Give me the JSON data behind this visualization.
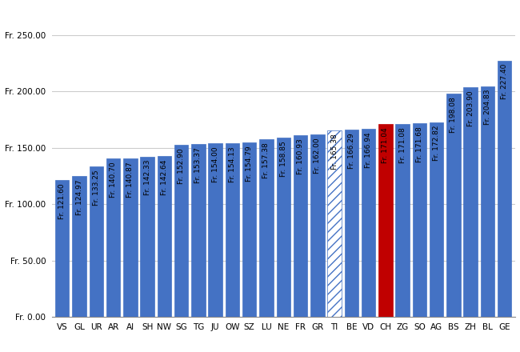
{
  "categories": [
    "VS",
    "GL",
    "UR",
    "AR",
    "AI",
    "SH",
    "NW",
    "SG",
    "TG",
    "JU",
    "OW",
    "SZ",
    "LU",
    "NE",
    "FR",
    "GR",
    "TI",
    "BE",
    "VD",
    "CH",
    "ZG",
    "SO",
    "AG",
    "BS",
    "ZH",
    "BL",
    "GE"
  ],
  "values": [
    121.6,
    124.97,
    133.25,
    140.7,
    140.87,
    142.33,
    142.64,
    152.9,
    153.37,
    154.0,
    154.13,
    154.79,
    157.38,
    158.85,
    160.93,
    162.0,
    165.38,
    166.29,
    166.94,
    171.04,
    171.08,
    171.68,
    172.82,
    198.08,
    203.9,
    204.83,
    227.4
  ],
  "bar_colors": [
    "#4472c4",
    "#4472c4",
    "#4472c4",
    "#4472c4",
    "#4472c4",
    "#4472c4",
    "#4472c4",
    "#4472c4",
    "#4472c4",
    "#4472c4",
    "#4472c4",
    "#4472c4",
    "#4472c4",
    "#4472c4",
    "#4472c4",
    "#4472c4",
    "#4472c4",
    "#4472c4",
    "#4472c4",
    "#c00000",
    "#4472c4",
    "#4472c4",
    "#4472c4",
    "#4472c4",
    "#4472c4",
    "#4472c4",
    "#4472c4"
  ],
  "hatched": [
    false,
    false,
    false,
    false,
    false,
    false,
    false,
    false,
    false,
    false,
    false,
    false,
    false,
    false,
    false,
    false,
    true,
    false,
    false,
    false,
    false,
    false,
    false,
    false,
    false,
    false,
    false
  ],
  "ylim": [
    0,
    275
  ],
  "yticks": [
    0,
    50,
    100,
    150,
    200,
    250
  ],
  "ytick_labels": [
    "Fr. 0.00",
    "Fr. 50.00",
    "Fr. 100.00",
    "Fr. 150.00",
    "Fr. 200.00",
    "Fr. 250.00"
  ],
  "background_color": "#ffffff",
  "grid_color": "#cccccc",
  "label_fontsize": 6.5,
  "tick_fontsize": 7.5,
  "bar_blue": "#4472c4",
  "bar_red": "#c00000"
}
